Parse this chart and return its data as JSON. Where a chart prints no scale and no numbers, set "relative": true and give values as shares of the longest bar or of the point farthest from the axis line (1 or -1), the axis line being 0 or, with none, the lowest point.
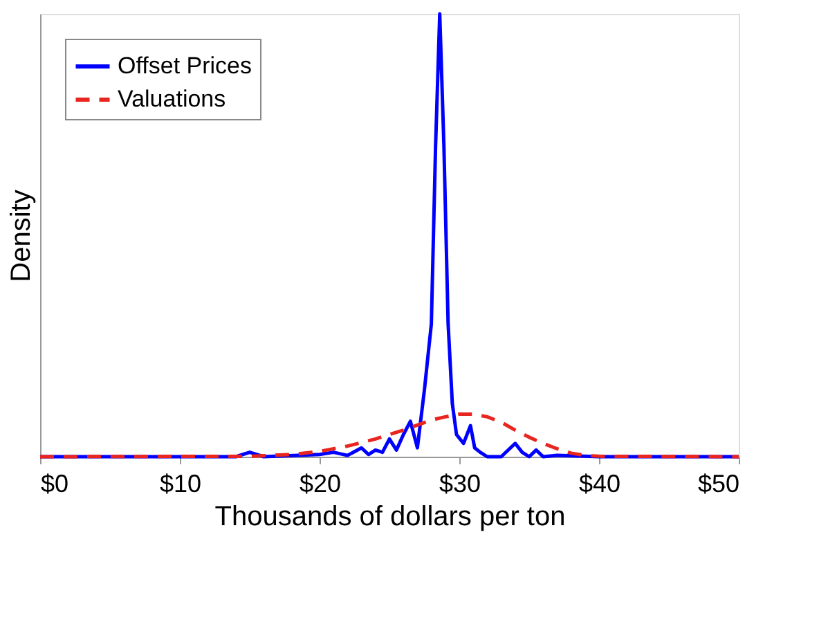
{
  "chart_data": {
    "type": "line",
    "xlabel": "Thousands of dollars per ton",
    "ylabel": "Density",
    "relative": true,
    "xlim": [
      0,
      50
    ],
    "xticks": [
      {
        "value": 0,
        "label": "$0"
      },
      {
        "value": 10,
        "label": "$10"
      },
      {
        "value": 20,
        "label": "$20"
      },
      {
        "value": 30,
        "label": "$30"
      },
      {
        "value": 40,
        "label": "$40"
      },
      {
        "value": 50,
        "label": "$50"
      }
    ],
    "tick_labels": "x",
    "grid": false,
    "legend": "top left",
    "series": [
      {
        "name": "Offset Prices",
        "color": "#0000ff",
        "line_style": "solid",
        "x": [
          0,
          14,
          15,
          16,
          20,
          21,
          22,
          23,
          23.5,
          24,
          24.5,
          25,
          25.5,
          26,
          26.5,
          27,
          27.5,
          28,
          28.3,
          28.6,
          28.9,
          29.2,
          29.5,
          29.8,
          30.3,
          30.8,
          31.1,
          31.5,
          32,
          33,
          34,
          34.5,
          35,
          35.5,
          36,
          37,
          40,
          50
        ],
        "values": [
          0,
          0,
          0.01,
          0,
          0.005,
          0.01,
          0.003,
          0.02,
          0.005,
          0.015,
          0.01,
          0.04,
          0.015,
          0.05,
          0.08,
          0.02,
          0.15,
          0.3,
          0.7,
          1.0,
          0.7,
          0.3,
          0.12,
          0.05,
          0.03,
          0.07,
          0.02,
          0.01,
          0,
          0,
          0.03,
          0.01,
          0,
          0.015,
          0,
          0.003,
          0,
          0
        ]
      },
      {
        "name": "Valuations",
        "color": "#e8251f",
        "line_style": "dashed",
        "x": [
          0,
          15,
          18,
          20,
          22,
          24,
          26,
          28,
          29,
          30,
          31,
          32,
          33,
          34,
          35,
          36,
          37,
          38,
          39,
          40,
          50
        ],
        "values": [
          0,
          0.001,
          0.005,
          0.012,
          0.024,
          0.04,
          0.06,
          0.083,
          0.09,
          0.096,
          0.096,
          0.09,
          0.078,
          0.06,
          0.044,
          0.03,
          0.018,
          0.008,
          0.003,
          0.001,
          0
        ]
      }
    ]
  }
}
